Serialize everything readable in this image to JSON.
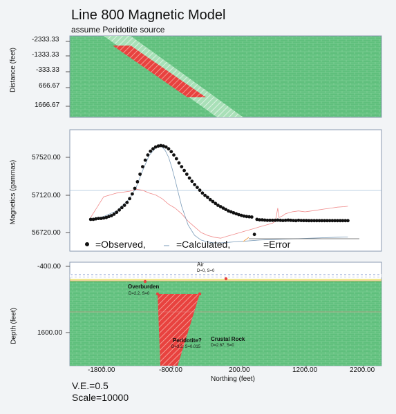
{
  "title": "Line 800 Magnetic Model",
  "subtitle": "assume Peridotite source",
  "colors": {
    "rock": "#5fbf7c",
    "brick": "#8fd7a2",
    "body": "#e8423f",
    "frame": "#8a9ab0"
  },
  "chart_data": [
    {
      "type": "heatmap",
      "name": "plan view",
      "ylabel": "Distance (feet)",
      "yticks": [
        "-2333.33",
        "-1333.33",
        "-333.33",
        "666.67",
        "1666.67"
      ]
    },
    {
      "type": "scatter",
      "name": "magnetic profile",
      "ylabel": "Magnetics (gammas)",
      "yticks": [
        "57520.00",
        "57120.00",
        "56720.00"
      ],
      "ylim": [
        56620,
        57820
      ],
      "legend": {
        "observed": "=Observed,",
        "calculated": "=Calculated,",
        "error": "=Error"
      },
      "observed": {
        "x": [
          -2000,
          -1960,
          -1920,
          -1880,
          -1840,
          -1800,
          -1760,
          -1720,
          -1680,
          -1640,
          -1600,
          -1560,
          -1520,
          -1480,
          -1440,
          -1400,
          -1360,
          -1320,
          -1280,
          -1240,
          -1200,
          -1160,
          -1120,
          -1080,
          -1040,
          -1000,
          -960,
          -920,
          -880,
          -840,
          -800,
          -760,
          -720,
          -680,
          -640,
          -600,
          -560,
          -520,
          -480,
          -440,
          -400,
          -360,
          -320,
          -280,
          -240,
          -200,
          -160,
          -120,
          -80,
          -40,
          0,
          40,
          80,
          120,
          160,
          200,
          240,
          280,
          320,
          360,
          400,
          440,
          480,
          520,
          560,
          600,
          640,
          680,
          720,
          760,
          800,
          840,
          880,
          920,
          960,
          1000,
          1040,
          1080,
          1120,
          1160,
          1200,
          1240,
          1280,
          1320,
          1360,
          1400,
          1440,
          1480,
          1520,
          1560,
          1600,
          1640,
          1680,
          1720,
          1760,
          1800,
          1840,
          1880,
          1920,
          1960
        ],
        "y": [
          56860,
          56860,
          56865,
          56870,
          56870,
          56875,
          56880,
          56890,
          56900,
          56915,
          56935,
          56960,
          56985,
          57010,
          57040,
          57080,
          57130,
          57190,
          57260,
          57340,
          57420,
          57490,
          57545,
          57585,
          57610,
          57630,
          57640,
          57645,
          57640,
          57630,
          57610,
          57580,
          57545,
          57505,
          57460,
          57420,
          57380,
          57340,
          57300,
          57265,
          57230,
          57200,
          57170,
          57140,
          57115,
          57095,
          57070,
          57050,
          57030,
          57010,
          56995,
          56980,
          56965,
          56950,
          56940,
          56930,
          56920,
          56910,
          56902,
          56895,
          56890,
          56887,
          56885,
          56700,
          56860,
          56855,
          56855,
          56852,
          56850,
          56850,
          56850,
          56850,
          56852,
          56850,
          56848,
          56850,
          56852,
          56850,
          56848,
          56846,
          56850,
          56848,
          56847,
          56847,
          56846,
          56846,
          56846,
          56846,
          56846,
          56846,
          56846,
          56846,
          56846,
          56846,
          56846,
          56846,
          56846,
          56846,
          56846,
          56846
        ]
      },
      "calculated": {
        "x": [
          -2000,
          -1800,
          -1600,
          -1400,
          -1300,
          -1200,
          -1100,
          -1000,
          -950,
          -900,
          -850,
          -800,
          -750,
          -700,
          -600,
          -500,
          -400,
          -300,
          -200,
          -100,
          0,
          100,
          200,
          400,
          600,
          800,
          1000,
          1200,
          1400,
          1600,
          1800,
          1960
        ],
        "y": [
          56860,
          56890,
          56950,
          57080,
          57200,
          57380,
          57540,
          57620,
          57640,
          57630,
          57590,
          57520,
          57410,
          57280,
          57000,
          56800,
          56690,
          56640,
          56620,
          56610,
          56610,
          56615,
          56620,
          56630,
          56640,
          56645,
          56650,
          56655,
          56660,
          56665,
          56670,
          56672
        ]
      },
      "error": {
        "x": [
          -2000,
          -1800,
          -1600,
          -1400,
          -1300,
          -1200,
          -1100,
          -1000,
          -900,
          -800,
          -700,
          -600,
          -500,
          -400,
          -300,
          -200,
          -100,
          0,
          100,
          200,
          300,
          400,
          500,
          600,
          700,
          800,
          840,
          860,
          880,
          900,
          960,
          1000,
          1100,
          1200,
          1300,
          1400,
          1500,
          1600,
          1700,
          1800,
          1900,
          1960
        ],
        "y": [
          56880,
          57100,
          57140,
          57160,
          57180,
          57170,
          57140,
          57120,
          57080,
          57020,
          56980,
          56920,
          56840,
          56780,
          56720,
          56690,
          56670,
          56660,
          56680,
          56700,
          56720,
          56740,
          56760,
          56780,
          56800,
          56820,
          56840,
          56900,
          56980,
          56880,
          56900,
          56920,
          56940,
          56950,
          56940,
          56950,
          56960,
          56970,
          56980,
          56990,
          56995,
          57000
        ]
      }
    },
    {
      "type": "heatmap",
      "name": "depth section",
      "ylabel": "Depth (feet)",
      "yticks": [
        "-400.00",
        "1600.00"
      ],
      "xlabel": "Northing (feet)",
      "xticks": [
        "-1800.00",
        "-800.00",
        "200.00",
        "1200.00",
        "2200.00"
      ],
      "labels": [
        {
          "text": "Air",
          "sub": "D=0, S=0"
        },
        {
          "text": "Overburden",
          "sub": "D=2.2, S=0"
        },
        {
          "text": "Peridotite?",
          "sub": "D=3.2, S=0.015"
        },
        {
          "text": "Crustal Rock",
          "sub": "D=2.67, S=0"
        }
      ]
    }
  ],
  "footer": {
    "ve": "V.E.=0.5",
    "scale": "Scale=10000"
  }
}
